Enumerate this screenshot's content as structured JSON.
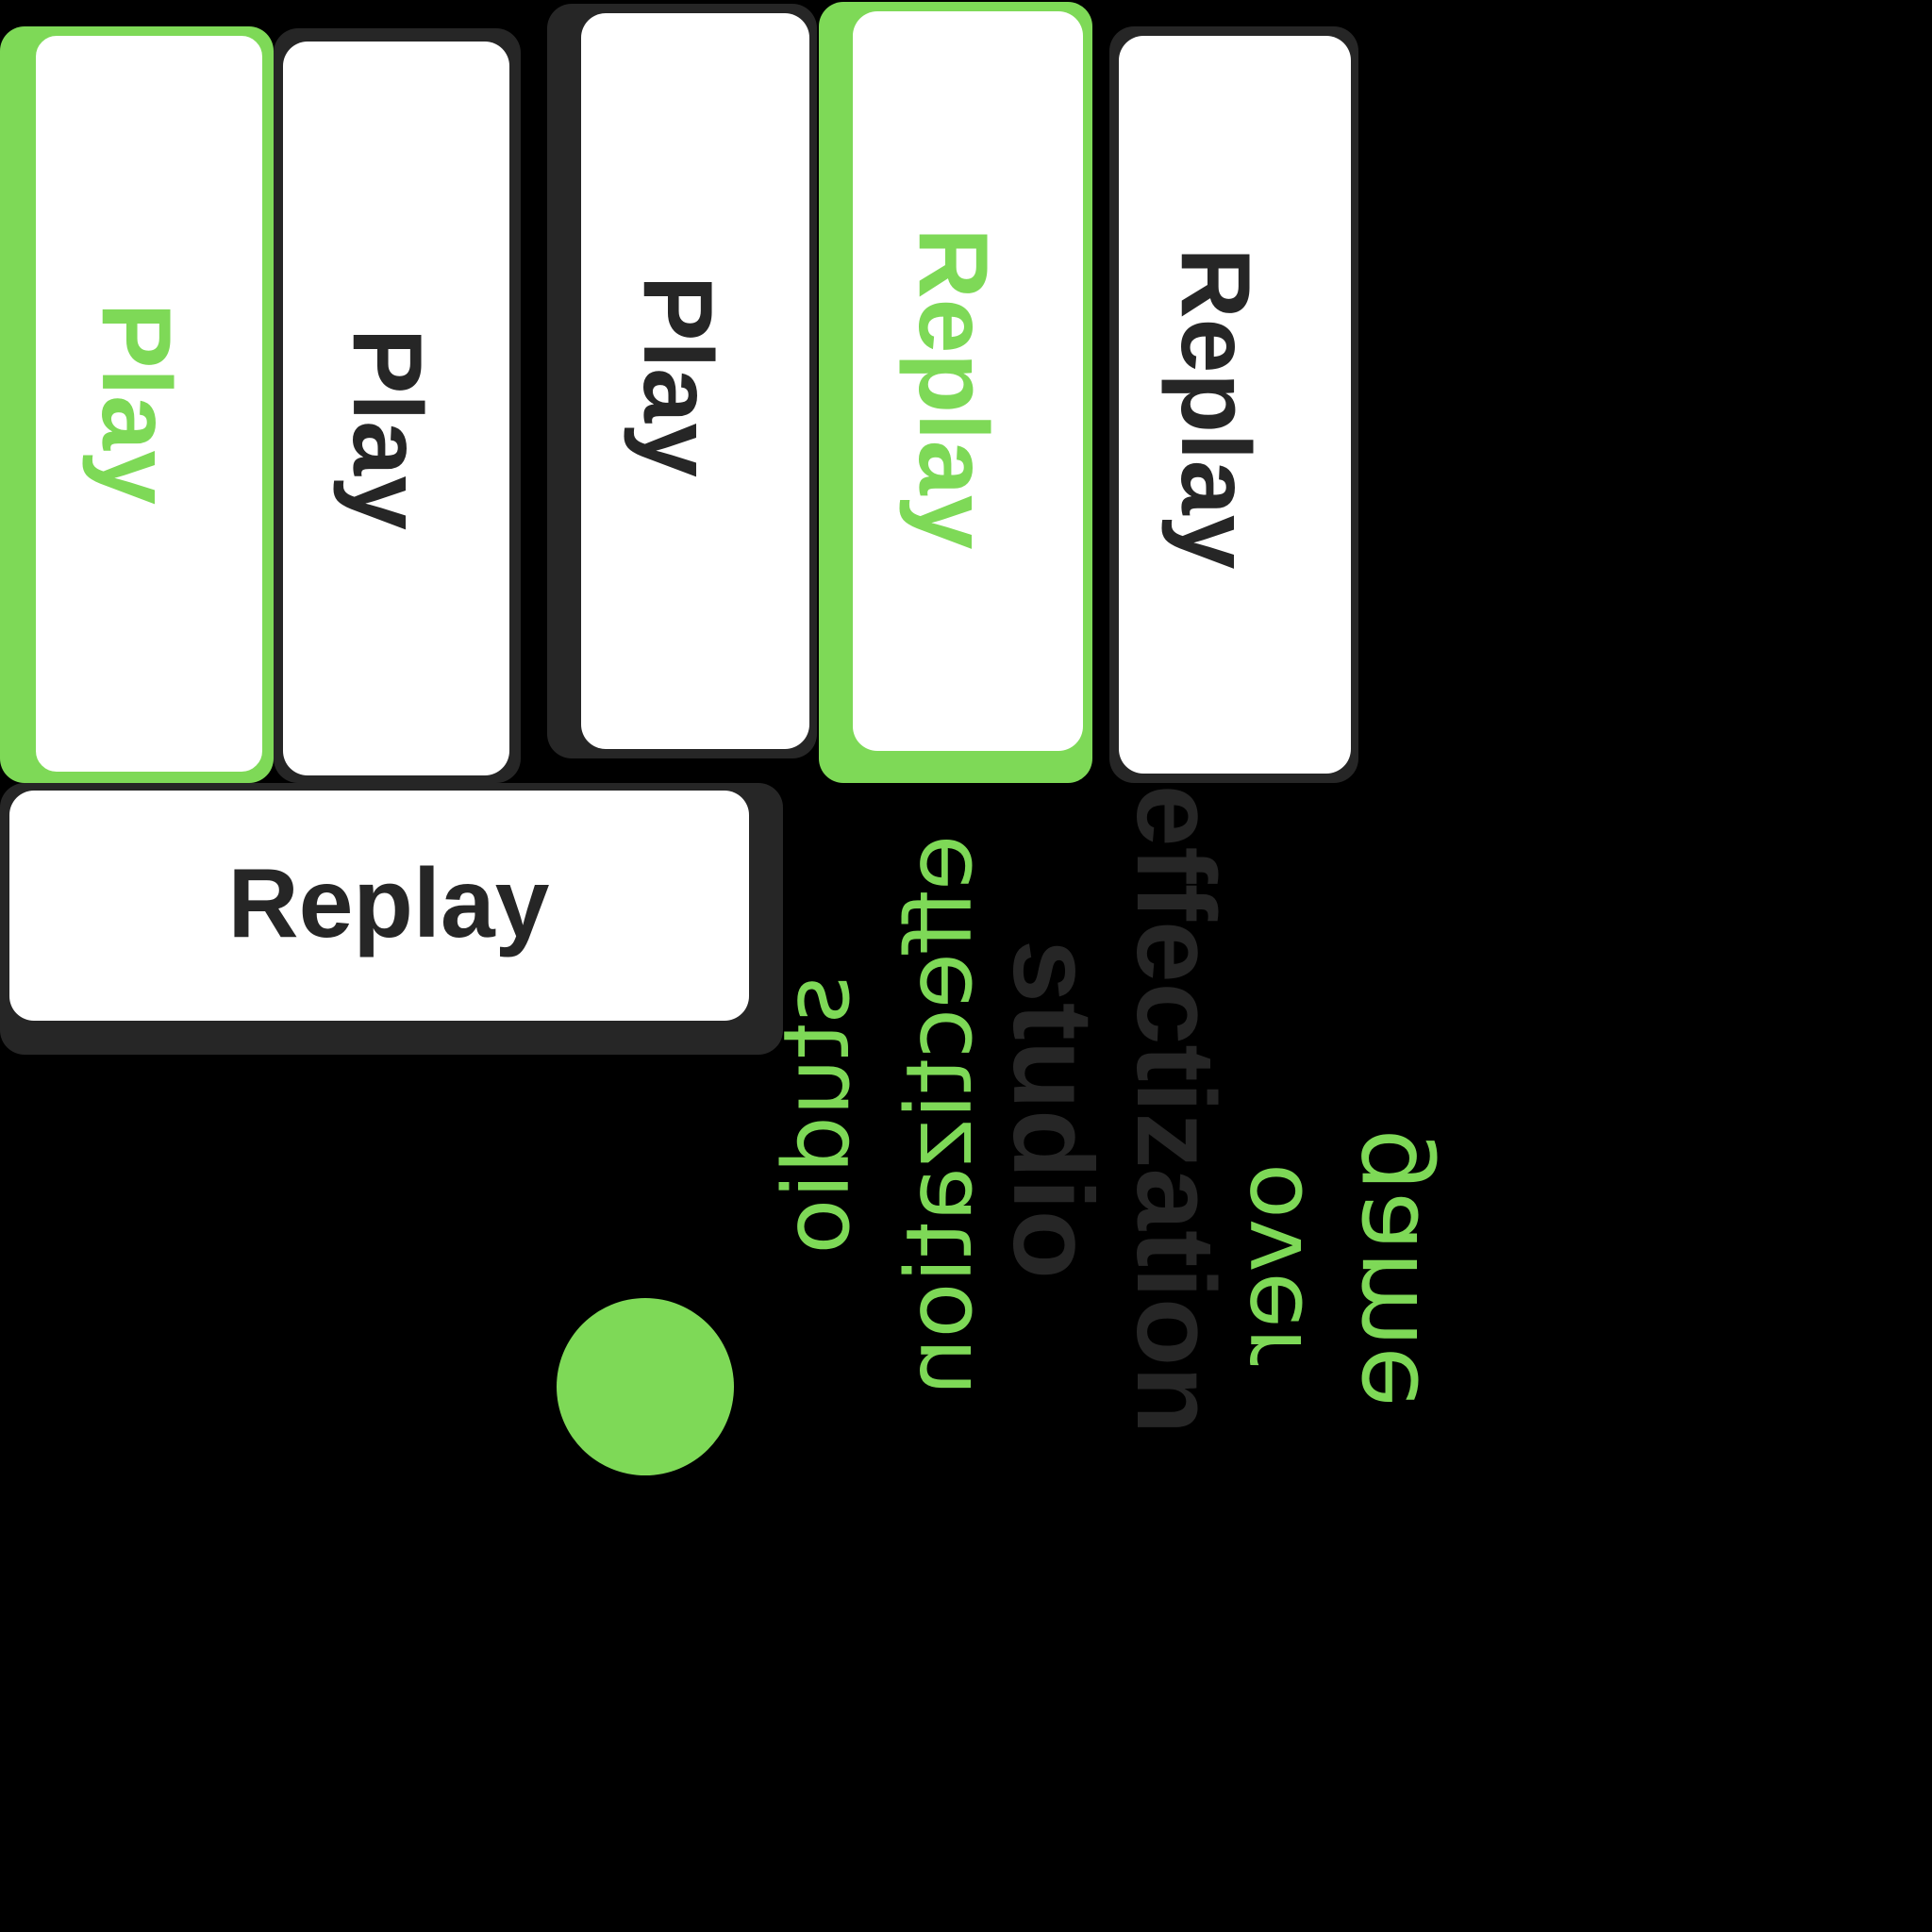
{
  "theme": {
    "background": "#000000",
    "accent": "#7ed957",
    "dark": "#262626",
    "tile_face": "#ffffff"
  },
  "buttons": [
    {
      "label": "Play",
      "state": "selected"
    },
    {
      "label": "Play",
      "state": "normal"
    },
    {
      "label": "Play",
      "state": "normal"
    },
    {
      "label": "Replay",
      "state": "selected"
    },
    {
      "label": "Replay",
      "state": "normal"
    },
    {
      "label": "Replay",
      "state": "normal"
    }
  ],
  "words": [
    {
      "text": "studio",
      "color": "accent"
    },
    {
      "text": "effectization",
      "color": "accent"
    },
    {
      "text": "studio",
      "color": "dark"
    },
    {
      "text": "effectization",
      "color": "dark"
    },
    {
      "text": "over",
      "color": "accent"
    },
    {
      "text": "game",
      "color": "accent"
    }
  ],
  "indicator": {
    "color": "accent",
    "state": "active"
  }
}
